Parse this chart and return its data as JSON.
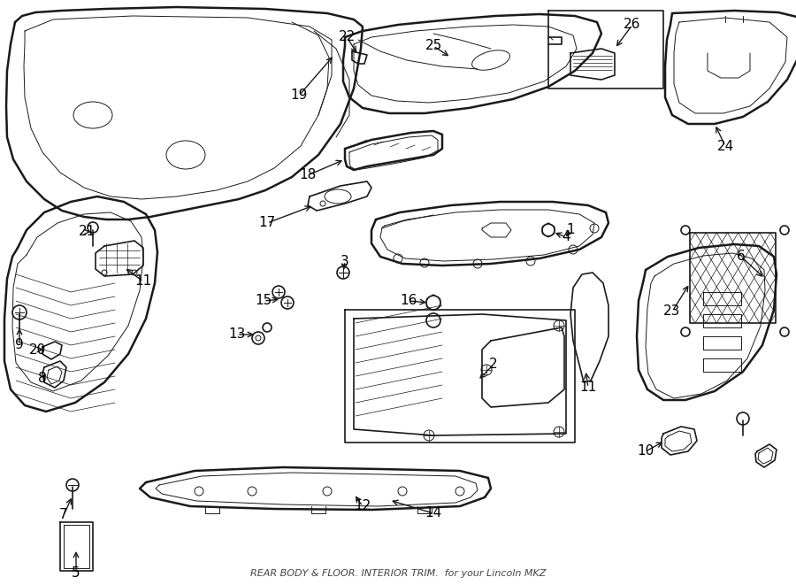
{
  "title": "REAR BODY & FLOOR. INTERIOR TRIM.",
  "subtitle": "Lincoln MKZ",
  "background_color": "#ffffff",
  "line_color": "#1a1a1a",
  "text_color": "#000000",
  "fig_width": 9.0,
  "fig_height": 6.61,
  "dpi": 100,
  "lw_thick": 1.8,
  "lw_med": 1.2,
  "lw_thin": 0.7,
  "lw_xtra": 0.5,
  "font_label": 11,
  "font_small": 8
}
